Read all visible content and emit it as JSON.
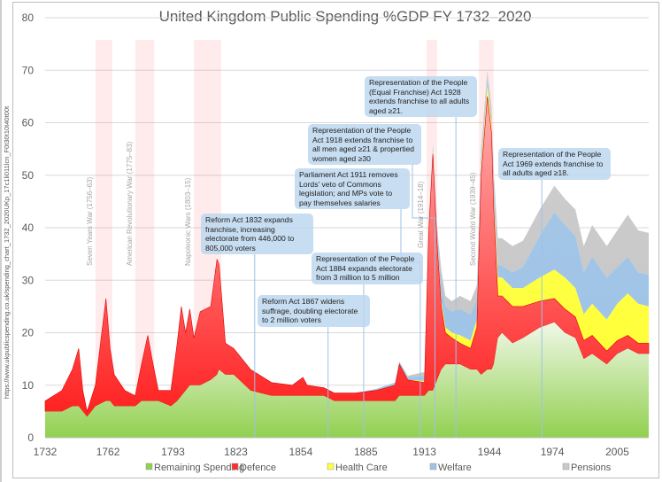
{
  "chart_data": {
    "type": "area",
    "stacked": true,
    "title": "United Kingdom Public Spending %GDP FY 1732–2020",
    "xlabel": "",
    "ylabel": "",
    "xlim": [
      1732,
      2020
    ],
    "ylim": [
      0,
      80
    ],
    "x_ticks": [
      "1732",
      "1762",
      "1793",
      "1823",
      "1854",
      "1885",
      "1913",
      "1944",
      "1974",
      "2005"
    ],
    "y_ticks": [
      "0",
      "10",
      "20",
      "30",
      "40",
      "50",
      "60",
      "70",
      "80"
    ],
    "grid": "horizontal",
    "legend_position": "bottom",
    "series": [
      {
        "name": "Remaining Spending",
        "color": "#92d050"
      },
      {
        "name": "Defence",
        "color": "#ff2a2a"
      },
      {
        "name": "Health Care",
        "color": "#ffff40"
      },
      {
        "name": "Welfare",
        "color": "#9dc3e6"
      },
      {
        "name": "Pensions",
        "color": "#c9c9c9"
      }
    ],
    "rows_columns": [
      "year",
      "Remaining Spending",
      "Defence",
      "Health Care",
      "Welfare",
      "Pensions"
    ],
    "rows": [
      [
        1732,
        5,
        2,
        0,
        0,
        0
      ],
      [
        1736,
        5,
        3,
        0,
        0,
        0
      ],
      [
        1740,
        5,
        4,
        0,
        0,
        0
      ],
      [
        1745,
        6,
        7,
        0,
        0,
        0
      ],
      [
        1748,
        6,
        11,
        0,
        0,
        0
      ],
      [
        1750,
        5,
        4,
        0,
        0,
        0
      ],
      [
        1752,
        4,
        1,
        0,
        0,
        0
      ],
      [
        1756,
        6,
        4,
        0,
        0,
        0
      ],
      [
        1761,
        7,
        19.5,
        0,
        0,
        0
      ],
      [
        1763,
        7,
        10,
        0,
        0,
        0
      ],
      [
        1765,
        6,
        6,
        0,
        0,
        0
      ],
      [
        1770,
        6,
        3,
        0,
        0,
        0
      ],
      [
        1775,
        6,
        2,
        0,
        0,
        0
      ],
      [
        1778,
        7,
        7,
        0,
        0,
        0
      ],
      [
        1781,
        7,
        12.5,
        0,
        0,
        0
      ],
      [
        1783,
        7,
        8,
        0,
        0,
        0
      ],
      [
        1786,
        7,
        2,
        0,
        0,
        0
      ],
      [
        1792,
        6,
        3,
        0,
        0,
        0
      ],
      [
        1795,
        7,
        11,
        0,
        0,
        0
      ],
      [
        1797,
        8,
        17,
        0,
        0,
        0
      ],
      [
        1799,
        9,
        11,
        0,
        0,
        0
      ],
      [
        1801,
        10,
        14.5,
        0,
        0,
        0
      ],
      [
        1803,
        10,
        9,
        0,
        0,
        0
      ],
      [
        1806,
        10,
        14,
        0,
        0,
        0
      ],
      [
        1811,
        11,
        14,
        0,
        0,
        0
      ],
      [
        1814,
        12,
        22,
        0,
        0,
        0
      ],
      [
        1815,
        13,
        20,
        0,
        0,
        0
      ],
      [
        1818,
        12,
        6,
        0,
        0,
        0
      ],
      [
        1822,
        12,
        5,
        0,
        0,
        0
      ],
      [
        1830,
        9,
        4,
        0,
        0,
        0
      ],
      [
        1840,
        8,
        2.5,
        0,
        0,
        0
      ],
      [
        1850,
        8,
        2,
        0,
        0,
        0
      ],
      [
        1855,
        8,
        3.5,
        0,
        0,
        0
      ],
      [
        1857,
        8,
        2,
        0,
        0,
        0
      ],
      [
        1865,
        8,
        1.5,
        0,
        0,
        0
      ],
      [
        1870,
        7,
        1.5,
        0,
        0,
        0
      ],
      [
        1880,
        7,
        1.5,
        0,
        0,
        0
      ],
      [
        1890,
        7,
        2,
        0,
        0.3,
        0
      ],
      [
        1899,
        7,
        3,
        0,
        0.5,
        0
      ],
      [
        1901,
        8,
        6,
        0,
        0.5,
        0
      ],
      [
        1905,
        8,
        3,
        0,
        0.5,
        0.3
      ],
      [
        1913,
        8,
        2.5,
        0.3,
        1,
        0.7
      ],
      [
        1915,
        9,
        30,
        0.5,
        1,
        0.5
      ],
      [
        1917,
        9,
        45,
        0.5,
        1,
        0.5
      ],
      [
        1919,
        11,
        26,
        1,
        1.5,
        1
      ],
      [
        1921,
        13,
        12,
        1,
        4,
        2
      ],
      [
        1923,
        14,
        6,
        1,
        4,
        2
      ],
      [
        1926,
        14,
        5,
        1,
        4,
        2
      ],
      [
        1930,
        14,
        4,
        1.5,
        5,
        2.5
      ],
      [
        1935,
        13,
        4,
        1.5,
        5,
        2.5
      ],
      [
        1938,
        13,
        8,
        1.5,
        4,
        2.5
      ],
      [
        1940,
        12,
        38,
        1.5,
        2,
        1.5
      ],
      [
        1943,
        13,
        52,
        2,
        1.5,
        1.5
      ],
      [
        1945,
        13,
        45,
        2,
        1.5,
        1.5
      ],
      [
        1946,
        14,
        30,
        2,
        3,
        2
      ],
      [
        1948,
        19,
        8,
        3.5,
        2.5,
        5
      ],
      [
        1950,
        20,
        7,
        3.5,
        2.2,
        5.3
      ],
      [
        1955,
        18,
        7,
        3.5,
        3,
        5
      ],
      [
        1960,
        19,
        6,
        3.5,
        4,
        5
      ],
      [
        1968,
        21,
        5,
        4.5,
        8,
        5
      ],
      [
        1975,
        22,
        4.5,
        5.5,
        11,
        5
      ],
      [
        1980,
        20,
        4.5,
        6,
        10,
        5
      ],
      [
        1985,
        19,
        4,
        5.5,
        10,
        5
      ],
      [
        1989,
        15,
        3.5,
        5,
        8,
        5
      ],
      [
        1993,
        16,
        3.5,
        6,
        9,
        6
      ],
      [
        2000,
        14,
        2.5,
        6,
        8,
        6
      ],
      [
        2005,
        16,
        2.5,
        7,
        7,
        7
      ],
      [
        2010,
        17,
        2.5,
        8,
        7,
        8
      ],
      [
        2015,
        16,
        2,
        7.5,
        6,
        8
      ],
      [
        2020,
        16,
        2,
        7,
        6,
        8
      ]
    ],
    "wars": [
      {
        "label": "Seven Years War (1756–63)",
        "start": 1756,
        "end": 1763
      },
      {
        "label": "American Revolutionary War (1775–83)",
        "start": 1775,
        "end": 1783
      },
      {
        "label": "Napoleonic Wars (1803–15)",
        "start": 1803,
        "end": 1815
      },
      {
        "label": "Great War (1914–18)",
        "start": 1914,
        "end": 1918
      },
      {
        "label": "Second World War (1939–45)",
        "start": 1939,
        "end": 1945
      }
    ],
    "annotations": [
      {
        "year": 1832,
        "text": "Reform Act 1832 expands franchise, increasing electorate from 446,000 to 805,000 voters"
      },
      {
        "year": 1867,
        "text": "Reform Act 1867 widens suffrage, doubling electorate to 2 million voters"
      },
      {
        "year": 1884,
        "text": "Representation of the People Act 1884 expands electorate from 3 million to 5 million"
      },
      {
        "year": 1911,
        "text": "Parliament Act 1911 removes Lords’ veto of Commons legislation; and MPs vote to pay themselves salaries"
      },
      {
        "year": 1918,
        "text": "Representation of the People Act 1918 extends franchise to all men aged ≥21 & propertied women aged ≥30"
      },
      {
        "year": 1928,
        "text": "Representation of the People (Equal Franchise) Act 1928 extends franchise to all adults aged ≥21."
      },
      {
        "year": 1969,
        "text": "Representation of the People Act 1969 extends franchise to all adults aged ≥18."
      }
    ],
    "source_text": "https://www.ukpublicspending.co.uk/spending_chart_1732_2020UKp_17c1li011lcn_F0t30t10t40t00t"
  }
}
